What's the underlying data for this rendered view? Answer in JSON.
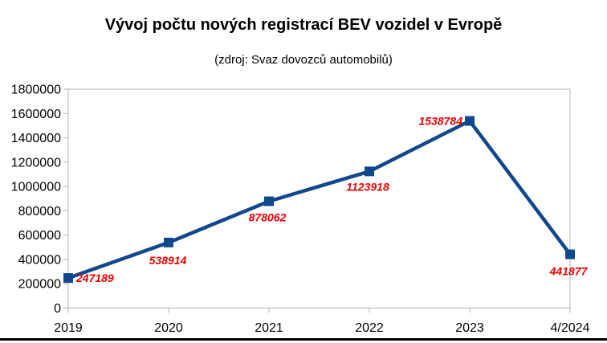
{
  "page": {
    "background": "#ffffff"
  },
  "chart_data": {
    "type": "line",
    "title": "Vývoj počtu nových registrací BEV vozidel v Evropě",
    "subtitle": "(zdroj: Svaz dovozců automobilů)",
    "categories": [
      "2019",
      "2020",
      "2021",
      "2022",
      "2023",
      "4/2024"
    ],
    "values": [
      247189,
      538914,
      878062,
      1123918,
      1538784,
      441877
    ],
    "data_labels": [
      "247189",
      "538914",
      "878062",
      "1123918",
      "1538784",
      "441877"
    ],
    "xlabel": "",
    "ylabel": "",
    "ylim": [
      0,
      1800000
    ],
    "ytick_step": 200000,
    "ytick_labels": [
      "0",
      "200000",
      "400000",
      "600000",
      "800000",
      "1000000",
      "1200000",
      "1400000",
      "1600000",
      "1800000"
    ],
    "grid": false,
    "legend_position": "none",
    "marker_shape": "square",
    "colors": {
      "line": "#11478b",
      "marker": "#11478b",
      "data_label": "#ee0000",
      "axis": "#b3b3b3",
      "tick_text": "#000000",
      "title_text": "#000000"
    }
  }
}
